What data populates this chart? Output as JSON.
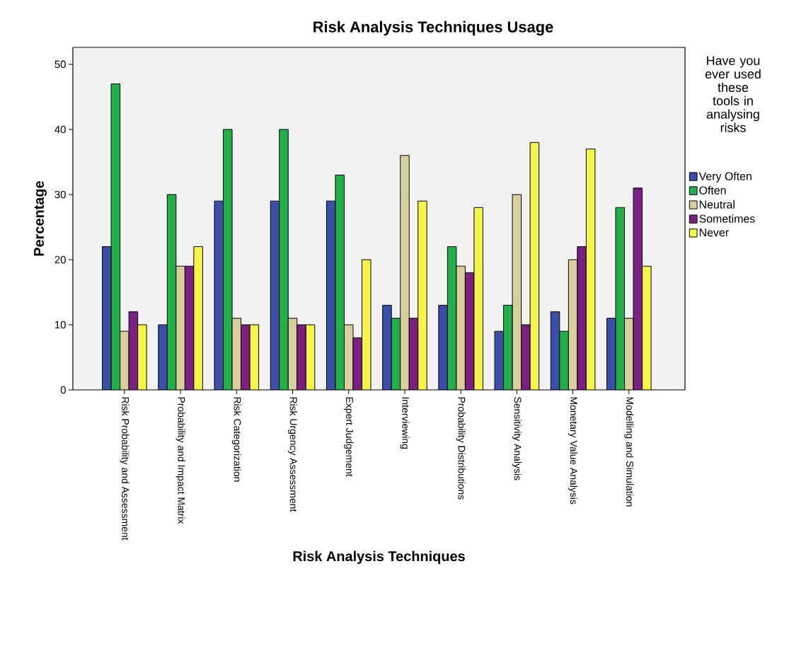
{
  "chart_data": {
    "type": "bar",
    "title": "Risk Analysis Techniques Usage",
    "xlabel": "Risk Analysis Techniques",
    "ylabel": "Percentage",
    "legend_title": "Have you ever used these tools in analysing risks",
    "categories": [
      "Risk Probability and Assessment",
      "Probability and Impact Matrix",
      "Risk Categorization",
      "Risk Urgency Assessment",
      "Expert Judgement",
      "Interviewing",
      "Probability Distributions",
      "Sensitivity Analysis",
      "Monetary Value Analysis",
      "Modelling and Simulation"
    ],
    "series": [
      {
        "name": "Very Often",
        "color": "#3c4fa8",
        "values": [
          22,
          10,
          29,
          29,
          29,
          13,
          13,
          9,
          12,
          11
        ]
      },
      {
        "name": "Often",
        "color": "#22b04a",
        "values": [
          47,
          30,
          40,
          40,
          33,
          11,
          22,
          13,
          9,
          28
        ]
      },
      {
        "name": "Neutral",
        "color": "#d8cf9c",
        "values": [
          9,
          19,
          11,
          11,
          10,
          36,
          19,
          30,
          20,
          11
        ]
      },
      {
        "name": "Sometimes",
        "color": "#7a2082",
        "values": [
          12,
          19,
          10,
          10,
          8,
          11,
          18,
          10,
          22,
          31
        ]
      },
      {
        "name": "Never",
        "color": "#f4f44a",
        "values": [
          10,
          22,
          10,
          10,
          20,
          29,
          28,
          38,
          37,
          19
        ]
      }
    ],
    "ylim": [
      0,
      52.6
    ],
    "yticks": [
      0,
      10,
      20,
      30,
      40,
      50
    ],
    "grid": false,
    "legend": "right"
  }
}
